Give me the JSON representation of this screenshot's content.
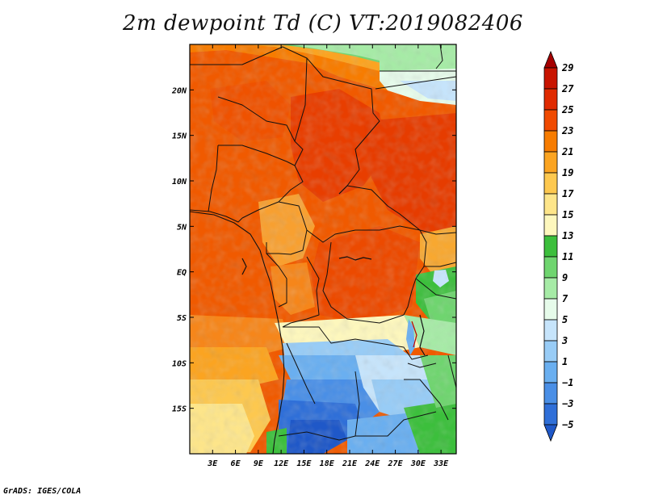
{
  "title": "2m dewpoint Td (C) VT:2019082406",
  "credit": "GrADS: IGES/COLA",
  "map": {
    "lon_range": [
      0,
      35
    ],
    "lat_range": [
      -20,
      25
    ],
    "lon_ticks": [
      {
        "value": 3,
        "label": "3E"
      },
      {
        "value": 6,
        "label": "6E"
      },
      {
        "value": 9,
        "label": "9E"
      },
      {
        "value": 12,
        "label": "12E"
      },
      {
        "value": 15,
        "label": "15E"
      },
      {
        "value": 18,
        "label": "18E"
      },
      {
        "value": 21,
        "label": "21E"
      },
      {
        "value": 24,
        "label": "24E"
      },
      {
        "value": 27,
        "label": "27E"
      },
      {
        "value": 30,
        "label": "30E"
      },
      {
        "value": 33,
        "label": "33E"
      }
    ],
    "lat_ticks": [
      {
        "value": 20,
        "label": "20N"
      },
      {
        "value": 15,
        "label": "15N"
      },
      {
        "value": 10,
        "label": "10N"
      },
      {
        "value": 5,
        "label": "5N"
      },
      {
        "value": 0,
        "label": "EQ"
      },
      {
        "value": -5,
        "label": "5S"
      },
      {
        "value": -10,
        "label": "10S"
      },
      {
        "value": -15,
        "label": "15S"
      }
    ]
  },
  "colorbar": {
    "levels": [
      29,
      27,
      25,
      23,
      21,
      19,
      17,
      15,
      13,
      11,
      9,
      7,
      5,
      3,
      1,
      -1,
      -3,
      -5
    ],
    "labels": [
      "29",
      "27",
      "25",
      "23",
      "21",
      "19",
      "17",
      "15",
      "13",
      "11",
      "9",
      "7",
      "5",
      "3",
      "1",
      "−1",
      "−3",
      "−5"
    ],
    "colors": [
      "#a50000",
      "#c81400",
      "#e02a00",
      "#f04a00",
      "#f77c00",
      "#fba421",
      "#fdc84f",
      "#fde58a",
      "#fdf7bd",
      "#3cbf3c",
      "#6fd56f",
      "#a6eba6",
      "#e6fbea",
      "#c6e4fb",
      "#98ccf6",
      "#6aaff0",
      "#4a8fe6",
      "#2f6fd8",
      "#1f58c8"
    ]
  }
}
